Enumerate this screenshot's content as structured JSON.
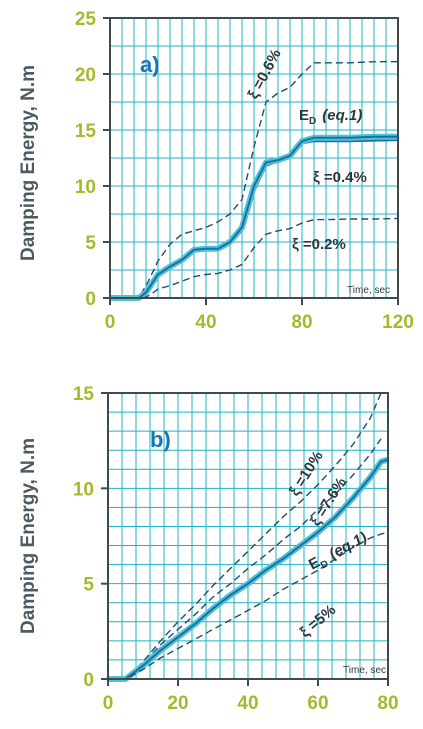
{
  "colors": {
    "grid": "#1fb3c2",
    "axis": "#3d4a52",
    "tick_label": "#a7b82f",
    "thick_band": "#4fc3d5",
    "mean_line": "#1c6fa6",
    "dashed": "#1d4f73",
    "panel_label": "#1a73b8"
  },
  "chart_data": [
    {
      "type": "line",
      "panel_label": "a)",
      "xlabel": "Time, sec",
      "ylabel": "Damping Energy, N.m",
      "xlim": [
        0,
        120
      ],
      "ylim": [
        0,
        25
      ],
      "xticks": [
        "0",
        "40",
        "80",
        "120"
      ],
      "yticks": [
        "0",
        "5",
        "10",
        "15",
        "20",
        "25"
      ],
      "grid": true,
      "series": [
        {
          "name": "ξ =0.6%",
          "style": "dashed",
          "x": [
            0,
            12,
            16,
            20,
            25,
            30,
            35,
            40,
            45,
            50,
            55,
            60,
            65,
            70,
            75,
            80,
            85,
            90,
            100,
            110,
            120
          ],
          "y": [
            0,
            0,
            1.5,
            3.3,
            4.8,
            5.7,
            6.0,
            6.3,
            6.8,
            7.5,
            8.8,
            13.5,
            17.5,
            18.3,
            18.8,
            20.0,
            21.0,
            21.0,
            21.0,
            21.1,
            21.1
          ]
        },
        {
          "name": "E_D (eq.1)",
          "style": "solid",
          "x": [
            0,
            12,
            15,
            20,
            25,
            30,
            35,
            40,
            45,
            50,
            55,
            60,
            65,
            70,
            75,
            80,
            85,
            90,
            100,
            110,
            120
          ],
          "y": [
            0,
            0,
            0.4,
            2.0,
            2.7,
            3.3,
            4.2,
            4.3,
            4.3,
            4.8,
            6.0,
            9.5,
            11.8,
            12.2,
            12.5,
            13.8,
            14.0,
            14.0,
            14.0,
            14.05,
            14.1
          ]
        },
        {
          "name": "ξ =0.4%",
          "style": "band",
          "x": [
            0,
            12,
            15,
            20,
            25,
            30,
            35,
            40,
            45,
            50,
            55,
            60,
            65,
            70,
            75,
            80,
            85,
            90,
            100,
            110,
            120
          ],
          "y": [
            0,
            0,
            0.5,
            2.1,
            2.8,
            3.4,
            4.3,
            4.4,
            4.4,
            5.0,
            6.3,
            10.0,
            12.1,
            12.3,
            12.7,
            14.0,
            14.3,
            14.3,
            14.3,
            14.4,
            14.4
          ]
        },
        {
          "name": "ξ =0.2%",
          "style": "dashed",
          "x": [
            0,
            14,
            17,
            20,
            25,
            30,
            35,
            40,
            45,
            50,
            55,
            60,
            65,
            70,
            75,
            80,
            85,
            90,
            100,
            110,
            120
          ],
          "y": [
            0,
            0,
            0.3,
            0.8,
            1.1,
            1.5,
            1.9,
            2.1,
            2.2,
            2.5,
            3.0,
            4.5,
            5.7,
            6.0,
            6.2,
            6.7,
            7.0,
            7.0,
            7.05,
            7.05,
            7.1
          ]
        }
      ]
    },
    {
      "type": "line",
      "panel_label": "b)",
      "xlabel": "Time, sec",
      "ylabel": "Damping Energy, N.m",
      "xlim": [
        0,
        80
      ],
      "ylim": [
        0,
        15
      ],
      "xticks": [
        "0",
        "20",
        "40",
        "60",
        "80"
      ],
      "yticks": [
        "0",
        "5",
        "10",
        "15"
      ],
      "grid": true,
      "series": [
        {
          "name": "ξ =10%",
          "style": "dashed",
          "x": [
            0,
            5,
            10,
            15,
            20,
            25,
            30,
            35,
            40,
            45,
            50,
            55,
            60,
            65,
            70,
            75,
            78
          ],
          "y": [
            0,
            0,
            0.9,
            2.0,
            3.0,
            3.9,
            4.9,
            5.8,
            6.7,
            7.6,
            8.5,
            9.3,
            10.2,
            11.2,
            12.3,
            13.7,
            15.0
          ]
        },
        {
          "name": "ξ =7.6%",
          "style": "dashed",
          "x": [
            0,
            5,
            10,
            15,
            20,
            25,
            30,
            35,
            40,
            45,
            50,
            55,
            60,
            65,
            70,
            75,
            78
          ],
          "y": [
            0,
            0,
            0.8,
            1.8,
            2.6,
            3.4,
            4.3,
            5.0,
            5.8,
            6.5,
            7.3,
            8.0,
            8.9,
            9.7,
            10.7,
            11.8,
            12.6
          ]
        },
        {
          "name": "E_D (eq.1)",
          "style": "band",
          "x": [
            0,
            5,
            10,
            15,
            20,
            25,
            30,
            35,
            40,
            45,
            50,
            55,
            60,
            65,
            70,
            75,
            78,
            80
          ],
          "y": [
            0,
            0,
            0.7,
            1.5,
            2.2,
            2.9,
            3.7,
            4.4,
            5.0,
            5.7,
            6.3,
            7.0,
            7.7,
            8.5,
            9.5,
            10.6,
            11.4,
            11.5
          ]
        },
        {
          "name": "ξ =5%",
          "style": "dashed",
          "x": [
            0,
            5,
            10,
            15,
            20,
            25,
            30,
            35,
            40,
            45,
            50,
            55,
            60,
            65,
            70,
            75,
            78,
            80
          ],
          "y": [
            0,
            0,
            0.5,
            1.1,
            1.6,
            2.1,
            2.6,
            3.1,
            3.6,
            4.1,
            4.7,
            5.2,
            5.7,
            6.3,
            6.9,
            7.4,
            7.6,
            7.7
          ]
        }
      ]
    }
  ],
  "annotations": {
    "a": {
      "xi06": "ξ =0.6%",
      "ed": "E",
      "ed_sub": "D",
      "eq": "(eq.1)",
      "xi04": "ξ =0.4%",
      "xi02": "ξ =0.2%"
    },
    "b": {
      "xi10": "ξ =10%",
      "xi76": "ξ =7.6%",
      "ed": "E",
      "ed_sub": "D",
      "eq": "(eq.1)",
      "xi5": "ξ =5%"
    }
  }
}
